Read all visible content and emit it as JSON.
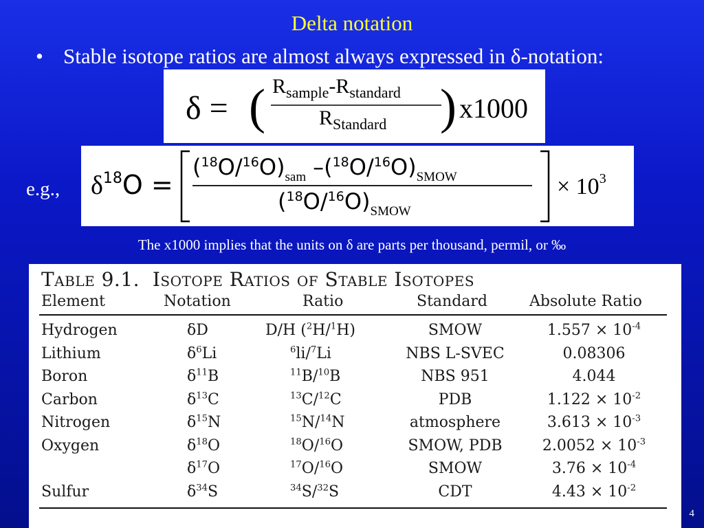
{
  "slide": {
    "title": "Delta notation",
    "bullet_marker": "•",
    "bullet_text": "Stable isotope ratios are almost always expressed in δ-notation:",
    "eg_label": "e.g.,",
    "note": "The x1000 implies that the units on δ are parts per thousand, permil, or ‰",
    "page_number": "4"
  },
  "equation1": {
    "lhs": "δ =",
    "numerator_a": "R",
    "numerator_a_sub": "sample",
    "minus": "-",
    "numerator_b": "R",
    "numerator_b_sub": "standard",
    "denominator": "R",
    "denominator_sub": "Standard",
    "multiplier": "x1000"
  },
  "equation2": {
    "lhs_delta": "δ",
    "lhs_mass": "18",
    "lhs_elem": "O =",
    "num_open": "(",
    "num_mass1": "18",
    "num_o1": "O/",
    "num_mass2": "16",
    "num_o2": "O)",
    "num_sub1": "sam",
    "num_minus": "–(",
    "num_mass3": "18",
    "num_o3": "O/",
    "num_mass4": "16",
    "num_o4": "O)",
    "num_sub2": "SMOW",
    "den_open": "(",
    "den_mass1": "18",
    "den_o1": "O/",
    "den_mass2": "16",
    "den_o2": "O)",
    "den_sub": "SMOW",
    "times": "× 10",
    "exp": "3"
  },
  "table": {
    "title_small": "Table",
    "title_num": "9.1.",
    "title_rest": "Isotope Ratios of Stable Isotopes",
    "headers": [
      "Element",
      "Notation",
      "Ratio",
      "Standard",
      "Absolute Ratio"
    ],
    "rows": [
      {
        "element": "Hydrogen",
        "n_pre": "δD",
        "n_sup": "",
        "n_el": "",
        "r_a": "D/H (",
        "r_s1": "2",
        "r_b": "H/",
        "r_s2": "1",
        "r_c": "H)",
        "standard": "SMOW",
        "abs_base": "1.557 × 10",
        "abs_exp": "-4"
      },
      {
        "element": "Lithium",
        "n_pre": "δ",
        "n_sup": "6",
        "n_el": "Li",
        "r_a": "",
        "r_s1": "6",
        "r_b": "li/",
        "r_s2": "7",
        "r_c": "Li",
        "standard": "NBS L-SVEC",
        "abs_base": "0.08306",
        "abs_exp": ""
      },
      {
        "element": "Boron",
        "n_pre": "δ",
        "n_sup": "11",
        "n_el": "B",
        "r_a": "",
        "r_s1": "11",
        "r_b": "B/",
        "r_s2": "10",
        "r_c": "B",
        "standard": "NBS 951",
        "abs_base": "4.044",
        "abs_exp": ""
      },
      {
        "element": "Carbon",
        "n_pre": "δ",
        "n_sup": "13",
        "n_el": "C",
        "r_a": "",
        "r_s1": "13",
        "r_b": "C/",
        "r_s2": "12",
        "r_c": "C",
        "standard": "PDB",
        "abs_base": "1.122 × 10",
        "abs_exp": "-2"
      },
      {
        "element": "Nitrogen",
        "n_pre": "δ",
        "n_sup": "15",
        "n_el": "N",
        "r_a": "",
        "r_s1": "15",
        "r_b": "N/",
        "r_s2": "14",
        "r_c": "N",
        "standard": "atmosphere",
        "abs_base": "3.613 × 10",
        "abs_exp": "-3"
      },
      {
        "element": "Oxygen",
        "n_pre": "δ",
        "n_sup": "18",
        "n_el": "O",
        "r_a": "",
        "r_s1": "18",
        "r_b": "O/",
        "r_s2": "16",
        "r_c": "O",
        "standard": "SMOW, PDB",
        "abs_base": "2.0052 × 10",
        "abs_exp": "-3"
      },
      {
        "element": "",
        "n_pre": "δ",
        "n_sup": "17",
        "n_el": "O",
        "r_a": "",
        "r_s1": "17",
        "r_b": "O/",
        "r_s2": "16",
        "r_c": "O",
        "standard": "SMOW",
        "abs_base": "3.76 × 10",
        "abs_exp": "-4"
      },
      {
        "element": "Sulfur",
        "n_pre": "δ",
        "n_sup": "34",
        "n_el": "S",
        "r_a": "",
        "r_s1": "34",
        "r_b": "S/",
        "r_s2": "32",
        "r_c": "S",
        "standard": "CDT",
        "abs_base": "4.43 × 10",
        "abs_exp": "-2"
      }
    ]
  }
}
